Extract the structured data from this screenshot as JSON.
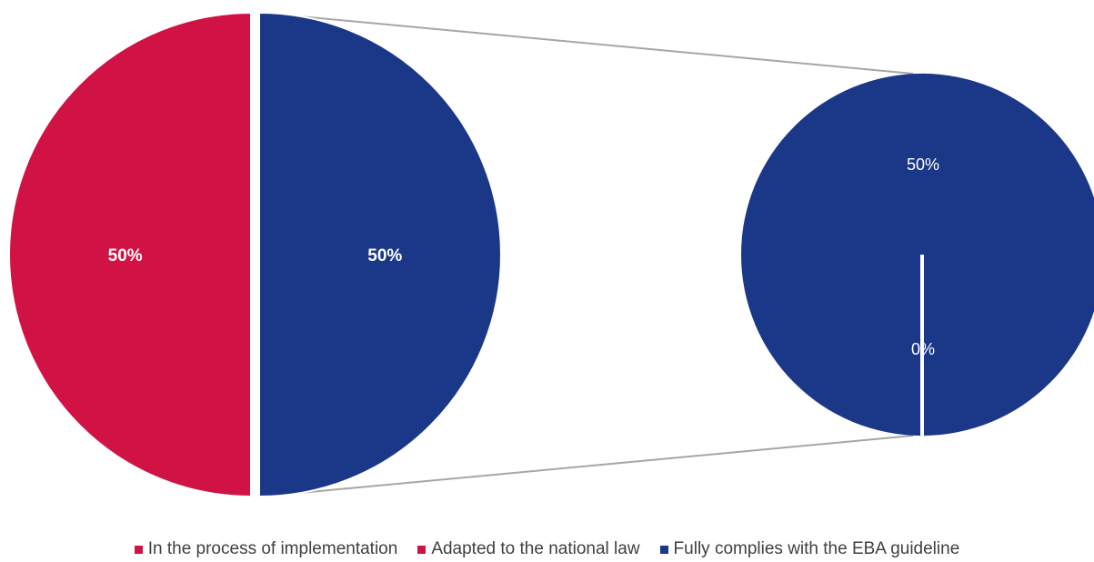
{
  "chart_data": {
    "type": "pie",
    "subtype": "bar-of-pie",
    "main_pie": {
      "slices": [
        {
          "category": "Adapted to the national law",
          "value": 50,
          "label": "50%",
          "color": "#d01244"
        },
        {
          "category": "Fully complies with the EBA guideline (group)",
          "value": 50,
          "label": "50%",
          "color": "#1b3888"
        }
      ]
    },
    "secondary_pie": {
      "slices": [
        {
          "category": "Fully complies with the EBA guideline",
          "value": 50,
          "label": "50%",
          "color": "#1b3888"
        },
        {
          "category": "In the process of implementation",
          "value": 0,
          "label": "0%",
          "color": "#d01244"
        }
      ]
    },
    "legend": {
      "position": "bottom",
      "items": [
        {
          "label": "In the process of implementation",
          "color": "#d01244"
        },
        {
          "label": "Adapted to the national law",
          "color": "#d01244"
        },
        {
          "label": "Fully complies with the EBA guideline",
          "color": "#1b3888"
        }
      ]
    },
    "connector_color": "#a6a6a6",
    "label_color": "#ffffff"
  }
}
